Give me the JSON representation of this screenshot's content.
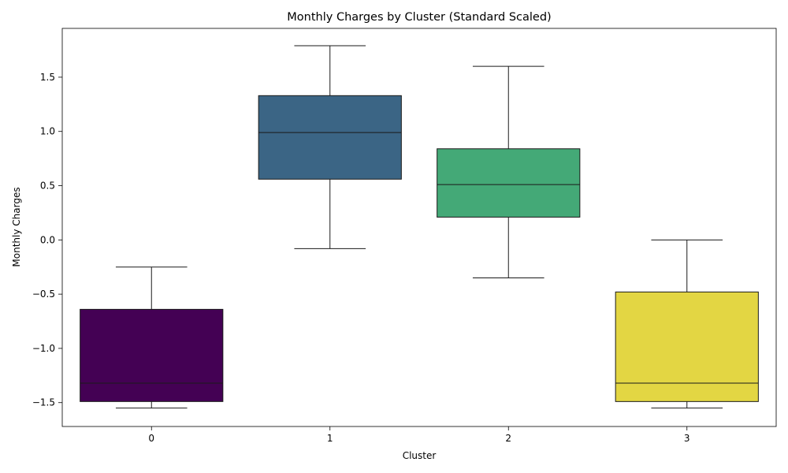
{
  "chart_data": {
    "type": "box",
    "title": "Monthly Charges by Cluster (Standard Scaled)",
    "xlabel": "Cluster",
    "ylabel": "Monthly Charges",
    "ylim": [
      -1.72,
      1.95
    ],
    "yticks": [
      -1.5,
      -1.0,
      -0.5,
      0.0,
      0.5,
      1.0,
      1.5
    ],
    "ytick_labels": [
      "−1.5",
      "−1.0",
      "−0.5",
      "0.0",
      "0.5",
      "1.0",
      "1.5"
    ],
    "grid": false,
    "legend": "none",
    "categories": [
      "0",
      "1",
      "2",
      "3"
    ],
    "boxes": [
      {
        "category": "0",
        "whisker_low": -1.55,
        "q1": -1.49,
        "median": -1.32,
        "q3": -0.64,
        "whisker_high": -0.25,
        "color": "#440154"
      },
      {
        "category": "1",
        "whisker_low": -0.08,
        "q1": 0.56,
        "median": 0.99,
        "q3": 1.33,
        "whisker_high": 1.79,
        "color": "#3b6585"
      },
      {
        "category": "2",
        "whisker_low": -0.35,
        "q1": 0.21,
        "median": 0.51,
        "q3": 0.84,
        "whisker_high": 1.6,
        "color": "#44a977"
      },
      {
        "category": "3",
        "whisker_low": -1.55,
        "q1": -1.49,
        "median": -1.32,
        "q3": -0.48,
        "whisker_high": 0.0,
        "color": "#e3d643"
      }
    ]
  }
}
